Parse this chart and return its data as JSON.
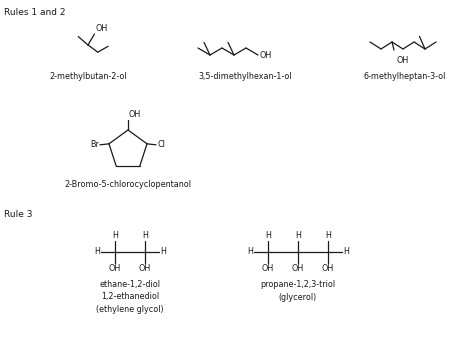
{
  "bg_color": "#ffffff",
  "text_color": "#1a1a1a",
  "title1": "Rules 1 and 2",
  "title2": "Rule 3",
  "mol1_name": "2-methylbutan-2-ol",
  "mol2_name": "3,5-dimethylhexan-1-ol",
  "mol3_name": "6-methylheptan-3-ol",
  "mol4_name": "2-Bromo-5-chlorocyclopentanol",
  "mol5_name": "ethane-1,2-diol\n1,2-ethanediol\n(ethylene glycol)",
  "mol6_name": "propane-1,2,3-triol\n(glycerol)",
  "fs": 6.5,
  "fs_small": 5.8,
  "lw": 0.9
}
